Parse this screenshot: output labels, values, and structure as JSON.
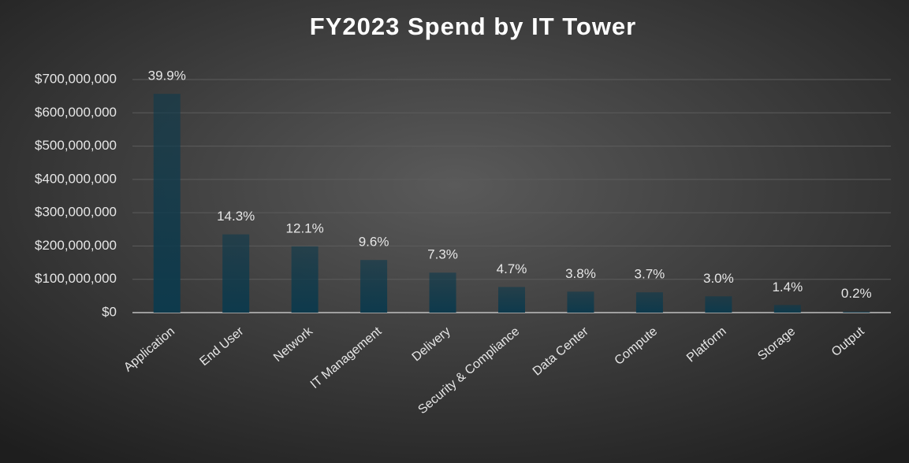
{
  "chart_data": {
    "type": "bar",
    "title": "FY2023 Spend by IT Tower",
    "categories": [
      "Application",
      "End User",
      "Network",
      "IT Management",
      "Delivery",
      "Security & Compliance",
      "Data Center",
      "Compute",
      "Platform",
      "Storage",
      "Output"
    ],
    "values": [
      657000000,
      235000000,
      199000000,
      158000000,
      120000000,
      77000000,
      63000000,
      61000000,
      49000000,
      23000000,
      3000000
    ],
    "annotations": [
      "39.9%",
      "14.3%",
      "12.1%",
      "9.6%",
      "7.3%",
      "4.7%",
      "3.8%",
      "3.7%",
      "3.0%",
      "1.4%",
      "0.2%"
    ],
    "color": "#0e3a4c",
    "ylim": [
      0,
      700000000
    ],
    "yticks": [
      {
        "value": 0,
        "label": "$0"
      },
      {
        "value": 100000000,
        "label": "$100,000,000"
      },
      {
        "value": 200000000,
        "label": "$200,000,000"
      },
      {
        "value": 300000000,
        "label": "$300,000,000"
      },
      {
        "value": 400000000,
        "label": "$400,000,000"
      },
      {
        "value": 500000000,
        "label": "$500,000,000"
      },
      {
        "value": 600000000,
        "label": "$600,000,000"
      },
      {
        "value": 700000000,
        "label": "$700,000,000"
      }
    ],
    "grid": true
  }
}
